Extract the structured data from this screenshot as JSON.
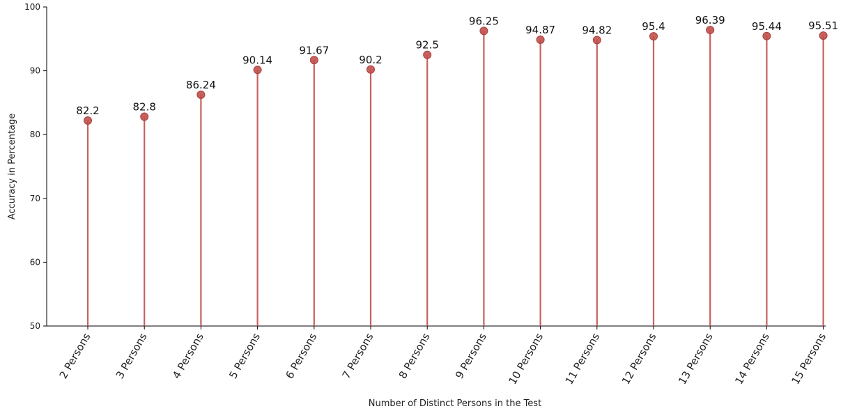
{
  "chart_data": {
    "type": "lollipop",
    "categories": [
      "2 Persons",
      "3 Persons",
      "4 Persons",
      "5 Persons",
      "6 Persons",
      "7 Persons",
      "8 Persons",
      "9 Persons",
      "10 Persons",
      "11 Persons",
      "12 Persons",
      "13 Persons",
      "14 Persons",
      "15 Persons"
    ],
    "values": [
      82.2,
      82.8,
      86.24,
      90.14,
      91.67,
      90.2,
      92.5,
      96.25,
      94.87,
      94.82,
      95.4,
      96.39,
      95.44,
      95.51
    ],
    "value_labels": [
      "82.2",
      "82.8",
      "86.24",
      "90.14",
      "91.67",
      "90.2",
      "92.5",
      "96.25",
      "94.87",
      "94.82",
      "95.4",
      "96.39",
      "95.44",
      "95.51"
    ],
    "xlabel": "Number of Distinct Persons in the Test",
    "ylabel": "Accuracy in Percentage",
    "ylim": [
      50,
      100
    ],
    "yticks": [
      "50",
      "60",
      "70",
      "80",
      "90",
      "100"
    ],
    "grid": false,
    "colors": {
      "stem": "#c0504d",
      "marker": "#c0504d",
      "axis": "#000000"
    }
  }
}
